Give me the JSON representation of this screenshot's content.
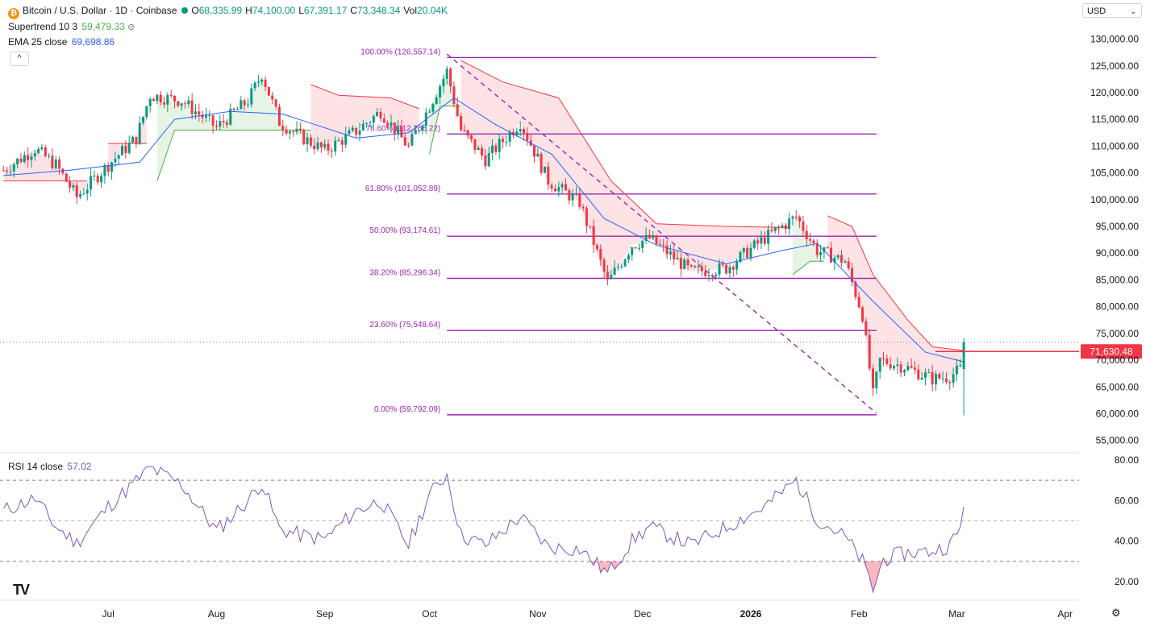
{
  "header": {
    "symbol": "Bitcoin / U.S. Dollar · 1D · Coinbase",
    "ohlc": [
      {
        "k": "O",
        "v": "68,335.99"
      },
      {
        "k": "H",
        "v": "74,100.00"
      },
      {
        "k": "L",
        "v": "67,391.17"
      },
      {
        "k": "C",
        "v": "73,348.34"
      },
      {
        "k": "Vol",
        "v": "20.04K"
      }
    ],
    "supertrend_label": "Supertrend 10 3",
    "supertrend_value": "59,479.33",
    "ema_label": "EMA 25 close",
    "ema_value": "69,698.86",
    "currency": "USD",
    "collapse_glyph": "^"
  },
  "rsi_header": {
    "label": "RSI 14 close",
    "value": "57.02"
  },
  "colors": {
    "up": "#089981",
    "down": "#f23645",
    "fib": "#9c27b0",
    "ema": "#2962ff",
    "rsi": "#7e57c2",
    "st_up": "#4caf50",
    "st_down": "#f23645",
    "price_tag": "#f23645"
  },
  "chart_data": [
    {
      "type": "candlestick",
      "title": "Bitcoin / U.S. Dollar · 1D · Coinbase",
      "y_ticks": [
        "130,000.00",
        "125,000.00",
        "120,000.00",
        "115,000.00",
        "110,000.00",
        "105,000.00",
        "100,000.00",
        "95,000.00",
        "90,000.00",
        "85,000.00",
        "80,000.00",
        "75,000.00",
        "70,000.00",
        "65,000.00",
        "60,000.00",
        "55,000.00"
      ],
      "y_tick_values": [
        130000,
        125000,
        120000,
        115000,
        110000,
        105000,
        100000,
        95000,
        90000,
        85000,
        80000,
        75000,
        70000,
        65000,
        60000,
        55000
      ],
      "ylim": [
        53000,
        134000
      ],
      "x_ticks": [
        "Jul",
        "Aug",
        "Sep",
        "Oct",
        "Nov",
        "Dec",
        "2026",
        "Feb",
        "Mar",
        "Apr"
      ],
      "x_tick_dates": [
        "2025-07-01",
        "2025-08-01",
        "2025-09-01",
        "2025-10-01",
        "2025-11-01",
        "2025-12-01",
        "2026-01-01",
        "2026-02-01",
        "2026-03-01",
        "2026-04-01"
      ],
      "x_range": [
        "2025-05-31",
        "2026-04-05"
      ],
      "current_price": {
        "value": 71630.48,
        "label": "71,630.48"
      },
      "fib_levels": [
        {
          "label": "100.00% (126,557.14)",
          "value": 126557.14
        },
        {
          "label": "78.60% (112,265.22)",
          "value": 112265.22
        },
        {
          "label": "61.80% (101,052.89)",
          "value": 101052.89
        },
        {
          "label": "50.00% (93,174.61)",
          "value": 93174.61
        },
        {
          "label": "38.20% (85,296.34)",
          "value": 85296.34
        },
        {
          "label": "23.60% (75,548.64)",
          "value": 75548.64
        },
        {
          "label": "0.00% (59,792.09)",
          "value": 59792.09
        }
      ],
      "fib_range": {
        "from": "2025-10-06",
        "to": "2026-02-06"
      },
      "trend_line": [
        [
          "2025-10-06",
          127200
        ],
        [
          "2026-02-06",
          60100
        ]
      ],
      "price_path": [
        [
          "2025-06-01",
          105500
        ],
        [
          "2025-06-10",
          109500
        ],
        [
          "2025-06-16",
          106500
        ],
        [
          "2025-06-22",
          100500
        ],
        [
          "2025-07-01",
          106500
        ],
        [
          "2025-07-09",
          111500
        ],
        [
          "2025-07-13",
          119500
        ],
        [
          "2025-07-22",
          118500
        ],
        [
          "2025-08-01",
          113500
        ],
        [
          "2025-08-10",
          118500
        ],
        [
          "2025-08-14",
          123500
        ],
        [
          "2025-08-19",
          114500
        ],
        [
          "2025-08-25",
          111800
        ],
        [
          "2025-09-01",
          109200
        ],
        [
          "2025-09-10",
          112800
        ],
        [
          "2025-09-17",
          116500
        ],
        [
          "2025-09-25",
          109800
        ],
        [
          "2025-10-01",
          117500
        ],
        [
          "2025-10-06",
          124000
        ],
        [
          "2025-10-10",
          113000
        ],
        [
          "2025-10-17",
          107500
        ],
        [
          "2025-10-27",
          114500
        ],
        [
          "2025-11-04",
          103500
        ],
        [
          "2025-11-13",
          99500
        ],
        [
          "2025-11-21",
          84500
        ],
        [
          "2025-11-28",
          91500
        ],
        [
          "2025-12-03",
          92800
        ],
        [
          "2025-12-15",
          86500
        ],
        [
          "2025-12-25",
          87200
        ],
        [
          "2026-01-05",
          92800
        ],
        [
          "2026-01-14",
          96800
        ],
        [
          "2026-01-20",
          90500
        ],
        [
          "2026-01-28",
          88500
        ],
        [
          "2026-02-02",
          78500
        ],
        [
          "2026-02-05",
          63500
        ],
        [
          "2026-02-07",
          70000
        ],
        [
          "2026-02-14",
          68800
        ],
        [
          "2026-02-22",
          66500
        ],
        [
          "2026-02-27",
          67000
        ],
        [
          "2026-03-02",
          68300
        ],
        [
          "2026-03-03",
          73348
        ]
      ],
      "ema_path": [
        [
          "2025-06-01",
          104500
        ],
        [
          "2025-06-20",
          105500
        ],
        [
          "2025-07-10",
          107000
        ],
        [
          "2025-07-20",
          115000
        ],
        [
          "2025-08-05",
          116500
        ],
        [
          "2025-08-20",
          116000
        ],
        [
          "2025-09-10",
          111500
        ],
        [
          "2025-09-25",
          112500
        ],
        [
          "2025-10-08",
          119000
        ],
        [
          "2025-10-20",
          114000
        ],
        [
          "2025-11-05",
          108500
        ],
        [
          "2025-11-20",
          96500
        ],
        [
          "2025-12-05",
          91500
        ],
        [
          "2025-12-25",
          88000
        ],
        [
          "2026-01-10",
          90500
        ],
        [
          "2026-01-20",
          91800
        ],
        [
          "2026-02-05",
          81000
        ],
        [
          "2026-02-20",
          71500
        ],
        [
          "2026-03-03",
          69700
        ]
      ],
      "supertrend": [
        {
          "trend": "down",
          "points": [
            [
              "2025-06-01",
              103500
            ],
            [
              "2025-06-25",
              103500
            ]
          ]
        },
        {
          "trend": "down",
          "points": [
            [
              "2025-07-01",
              110500
            ],
            [
              "2025-07-12",
              110500
            ]
          ]
        },
        {
          "trend": "up",
          "points": [
            [
              "2025-07-15",
              103500
            ],
            [
              "2025-07-20",
              113000
            ],
            [
              "2025-08-15",
              113000
            ],
            [
              "2025-08-28",
              113000
            ]
          ]
        },
        {
          "trend": "down",
          "points": [
            [
              "2025-08-28",
              121500
            ],
            [
              "2025-09-05",
              119500
            ],
            [
              "2025-09-20",
              119000
            ],
            [
              "2025-09-28",
              117000
            ]
          ]
        },
        {
          "trend": "up",
          "points": [
            [
              "2025-10-01",
              108500
            ],
            [
              "2025-10-04",
              117500
            ],
            [
              "2025-10-10",
              117500
            ]
          ]
        },
        {
          "trend": "down",
          "points": [
            [
              "2025-10-10",
              126000
            ],
            [
              "2025-10-22",
              122000
            ],
            [
              "2025-11-07",
              119000
            ],
            [
              "2025-11-22",
              103500
            ],
            [
              "2025-12-05",
              95500
            ],
            [
              "2025-12-25",
              95000
            ],
            [
              "2026-01-12",
              94800
            ]
          ]
        },
        {
          "trend": "up",
          "points": [
            [
              "2026-01-13",
              86000
            ],
            [
              "2026-01-18",
              88500
            ],
            [
              "2026-01-22",
              88500
            ]
          ]
        },
        {
          "trend": "down",
          "points": [
            [
              "2026-01-23",
              97000
            ],
            [
              "2026-01-30",
              95000
            ],
            [
              "2026-02-05",
              86000
            ],
            [
              "2026-02-15",
              77500
            ],
            [
              "2026-02-22",
              72500
            ],
            [
              "2026-03-03",
              71800
            ]
          ]
        }
      ]
    },
    {
      "type": "line",
      "title": "RSI 14 close",
      "y_ticks": [
        "80.00",
        "60.00",
        "40.00",
        "20.00"
      ],
      "y_tick_values": [
        80,
        60,
        40,
        20
      ],
      "ylim": [
        12,
        82
      ],
      "bands": [
        70,
        50,
        30
      ],
      "rsi_path": [
        [
          "2025-06-01",
          55
        ],
        [
          "2025-06-10",
          61
        ],
        [
          "2025-06-16",
          47
        ],
        [
          "2025-06-22",
          39
        ],
        [
          "2025-07-01",
          57
        ],
        [
          "2025-07-08",
          68
        ],
        [
          "2025-07-13",
          76
        ],
        [
          "2025-07-22",
          68
        ],
        [
          "2025-08-01",
          45
        ],
        [
          "2025-08-10",
          60
        ],
        [
          "2025-08-14",
          69
        ],
        [
          "2025-08-19",
          46
        ],
        [
          "2025-08-25",
          43
        ],
        [
          "2025-09-01",
          41
        ],
        [
          "2025-09-10",
          55
        ],
        [
          "2025-09-17",
          60
        ],
        [
          "2025-09-25",
          38
        ],
        [
          "2025-10-01",
          63
        ],
        [
          "2025-10-06",
          73
        ],
        [
          "2025-10-10",
          43
        ],
        [
          "2025-10-17",
          38
        ],
        [
          "2025-10-27",
          52
        ],
        [
          "2025-11-04",
          37
        ],
        [
          "2025-11-13",
          36
        ],
        [
          "2025-11-21",
          24
        ],
        [
          "2025-11-28",
          40
        ],
        [
          "2025-12-03",
          47
        ],
        [
          "2025-12-15",
          38
        ],
        [
          "2025-12-25",
          47
        ],
        [
          "2026-01-05",
          57
        ],
        [
          "2026-01-14",
          70
        ],
        [
          "2026-01-20",
          51
        ],
        [
          "2026-01-28",
          42
        ],
        [
          "2026-02-02",
          30
        ],
        [
          "2026-02-05",
          16
        ],
        [
          "2026-02-08",
          31
        ],
        [
          "2026-02-14",
          34
        ],
        [
          "2026-02-22",
          35
        ],
        [
          "2026-02-27",
          38
        ],
        [
          "2026-03-02",
          46
        ],
        [
          "2026-03-03",
          57
        ]
      ]
    }
  ]
}
